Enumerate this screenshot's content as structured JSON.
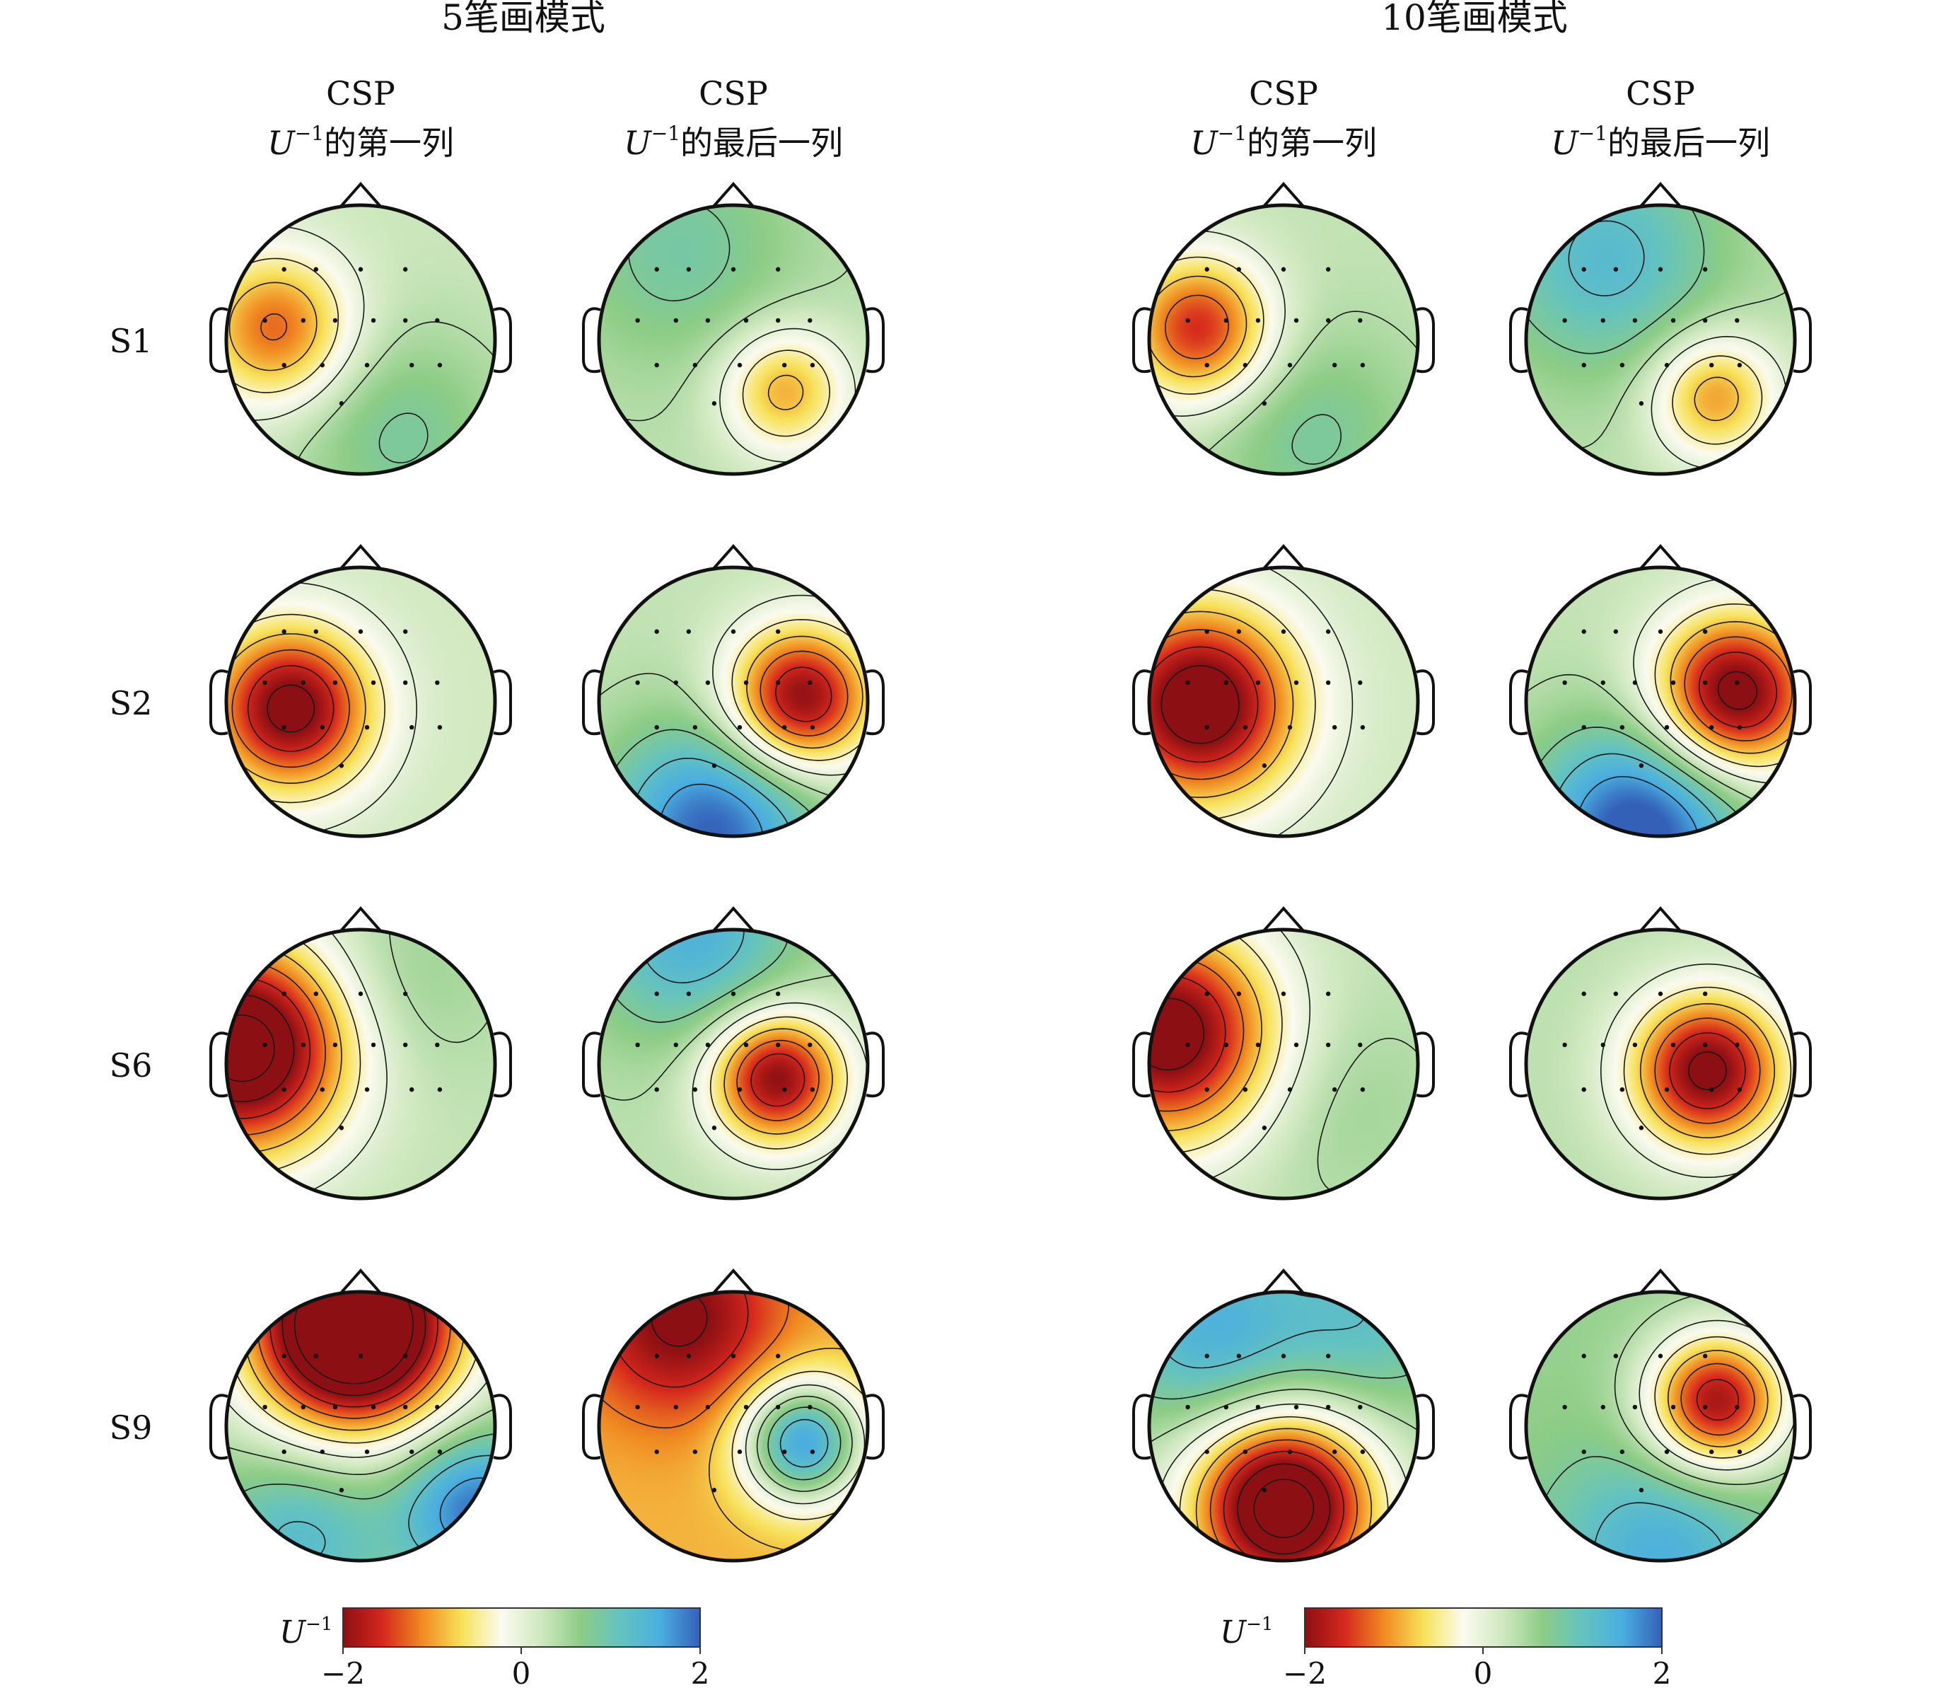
{
  "groups": [
    {
      "title": "5笔画模式",
      "columns": [
        {
          "line1": "CSP",
          "u": "U",
          "sup": "−1",
          "suffix": "的第一列"
        },
        {
          "line1": "CSP",
          "u": "U",
          "sup": "−1",
          "suffix": "的最后一列"
        }
      ],
      "colorbar": {
        "label_u": "U",
        "label_sup": "−1",
        "ticks": [
          "−2",
          "0",
          "2"
        ]
      }
    },
    {
      "title": "10笔画模式",
      "columns": [
        {
          "line1": "CSP",
          "u": "U",
          "sup": "−1",
          "suffix": "的第一列"
        },
        {
          "line1": "CSP",
          "u": "U",
          "sup": "−1",
          "suffix": "的最后一列"
        }
      ],
      "colorbar": {
        "label_u": "U",
        "label_sup": "−1",
        "ticks": [
          "−2",
          "0",
          "2"
        ]
      }
    }
  ],
  "rows": [
    "S1",
    "S2",
    "S6",
    "S9"
  ],
  "colormap": [
    "#8b0f13",
    "#d6281d",
    "#f08a22",
    "#f7e25a",
    "#fbfbf0",
    "#cfe8bf",
    "#8ccc86",
    "#64c3c0",
    "#4aaee0",
    "#3460b8"
  ],
  "maps": [
    [
      {
        "base": 0.25,
        "blobs": [
          [
            -0.63,
            0.08,
            0.4,
            -1.55
          ],
          [
            0.28,
            -0.7,
            0.55,
            0.6
          ]
        ]
      },
      {
        "base": 0.35,
        "blobs": [
          [
            0.38,
            -0.38,
            0.33,
            -1.3
          ],
          [
            -0.4,
            0.65,
            0.6,
            0.55
          ]
        ]
      },
      {
        "base": 0.3,
        "blobs": [
          [
            -0.63,
            0.08,
            0.38,
            -1.9
          ],
          [
            0.2,
            -0.7,
            0.55,
            0.55
          ]
        ]
      },
      {
        "base": 0.35,
        "blobs": [
          [
            0.4,
            -0.42,
            0.33,
            -1.4
          ],
          [
            -0.4,
            0.6,
            0.6,
            0.95
          ]
        ]
      }
    ],
    [
      {
        "base": 0.2,
        "blobs": [
          [
            -0.52,
            -0.05,
            0.42,
            -2.4
          ]
        ]
      },
      {
        "base": 0.3,
        "blobs": [
          [
            0.5,
            0.02,
            0.38,
            -2.4
          ],
          [
            -0.15,
            -0.95,
            0.55,
            1.7
          ]
        ]
      },
      {
        "base": 0.2,
        "blobs": [
          [
            -0.62,
            -0.02,
            0.5,
            -2.6
          ]
        ]
      },
      {
        "base": 0.3,
        "blobs": [
          [
            0.55,
            0.05,
            0.42,
            -2.6
          ],
          [
            -0.15,
            -0.95,
            0.55,
            1.9
          ]
        ]
      }
    ],
    [
      {
        "base": 0.3,
        "blobs": [
          [
            -0.88,
            0.12,
            0.55,
            -3.0
          ],
          [
            0.3,
            0.6,
            0.5,
            0.3
          ]
        ]
      },
      {
        "base": 0.35,
        "blobs": [
          [
            0.32,
            -0.1,
            0.35,
            -2.4
          ],
          [
            -0.3,
            0.95,
            0.55,
            1.1
          ]
        ]
      },
      {
        "base": 0.3,
        "blobs": [
          [
            -0.85,
            0.22,
            0.55,
            -2.6
          ],
          [
            0.4,
            -0.3,
            0.55,
            0.25
          ]
        ]
      },
      {
        "base": 0.35,
        "blobs": [
          [
            0.35,
            -0.05,
            0.4,
            -2.5
          ]
        ]
      }
    ],
    [
      {
        "base": 0.5,
        "blobs": [
          [
            -0.05,
            0.75,
            0.55,
            -4.0
          ],
          [
            0.85,
            -0.6,
            0.4,
            1.4
          ],
          [
            -0.45,
            -0.8,
            0.45,
            0.8
          ]
        ]
      },
      {
        "base": -0.9,
        "blobs": [
          [
            0.52,
            -0.12,
            0.32,
            2.5
          ],
          [
            -0.4,
            0.8,
            0.5,
            -1.2
          ]
        ]
      },
      {
        "base": 0.45,
        "blobs": [
          [
            0.0,
            -0.6,
            0.48,
            -3.2
          ],
          [
            -0.55,
            0.7,
            0.5,
            1.0
          ],
          [
            0.6,
            0.8,
            0.5,
            0.7
          ]
        ]
      },
      {
        "base": 0.6,
        "blobs": [
          [
            0.42,
            0.18,
            0.36,
            -2.5
          ],
          [
            0.0,
            -0.95,
            0.55,
            0.9
          ]
        ]
      }
    ]
  ]
}
